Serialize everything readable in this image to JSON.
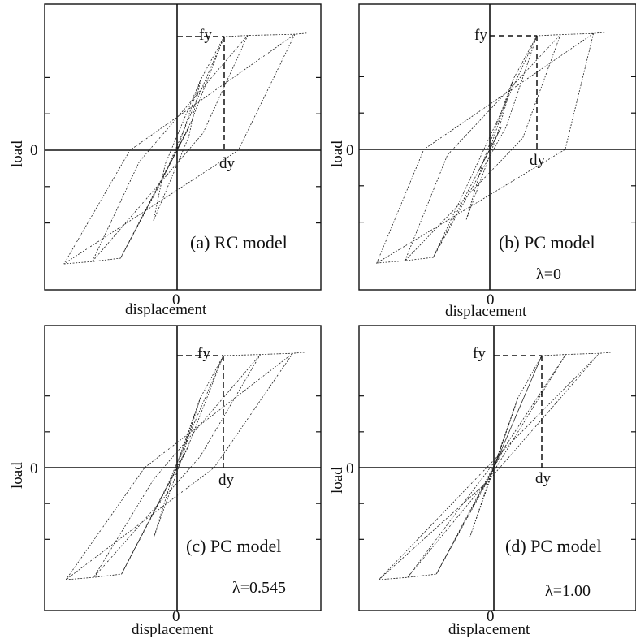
{
  "chart_data": [
    {
      "id": "a",
      "type": "line",
      "caption": "(a) RC model",
      "lambda_text": "",
      "xlabel": "displacement",
      "ylabel": "load",
      "x_tick": "0",
      "y_tick": "0",
      "fy_label": "fy",
      "dy_label": "dy",
      "yield_point": {
        "x": 1.0,
        "y": 1.0
      },
      "envelope": [
        [
          -2.4,
          -1.0
        ],
        [
          -1.8,
          -0.98
        ],
        [
          -1.2,
          -0.95
        ],
        [
          0,
          0
        ],
        [
          0.5,
          0.62
        ],
        [
          1.0,
          1.0
        ],
        [
          1.5,
          1.01
        ],
        [
          2.5,
          1.02
        ],
        [
          2.75,
          1.03
        ]
      ],
      "loops": [
        [
          [
            0.25,
            0.2
          ],
          [
            -0.25,
            -0.2
          ],
          [
            0.25,
            0.2
          ]
        ],
        [
          [
            0.5,
            0.62
          ],
          [
            0.25,
            0.12
          ],
          [
            -0.5,
            -0.62
          ],
          [
            -0.25,
            -0.12
          ],
          [
            0.5,
            0.62
          ]
        ],
        [
          [
            1.0,
            1.0
          ],
          [
            0.3,
            0.25
          ],
          [
            -1.2,
            -0.95
          ],
          [
            -0.3,
            -0.25
          ],
          [
            1.0,
            1.0
          ]
        ],
        [
          [
            1.5,
            1.01
          ],
          [
            0.55,
            0.15
          ],
          [
            -1.8,
            -0.98
          ],
          [
            -0.8,
            -0.1
          ],
          [
            1.5,
            1.01
          ]
        ],
        [
          [
            2.5,
            1.02
          ],
          [
            1.3,
            0.0
          ],
          [
            -2.4,
            -1.0
          ],
          [
            -1.0,
            0.0
          ],
          [
            2.5,
            1.02
          ]
        ]
      ]
    },
    {
      "id": "b",
      "type": "line",
      "caption": "(b) PC model",
      "lambda_text": "λ=0",
      "xlabel": "displacement",
      "ylabel": "load",
      "x_tick": "0",
      "y_tick": "0",
      "fy_label": "fy",
      "dy_label": "dy",
      "yield_point": {
        "x": 1.0,
        "y": 1.0
      },
      "envelope": [
        [
          -2.4,
          -1.0
        ],
        [
          -1.8,
          -0.98
        ],
        [
          -1.2,
          -0.95
        ],
        [
          0,
          0
        ],
        [
          0.5,
          0.62
        ],
        [
          1.0,
          1.0
        ],
        [
          1.5,
          1.01
        ],
        [
          2.2,
          1.02
        ],
        [
          2.45,
          1.03
        ]
      ],
      "loops": [
        [
          [
            0.25,
            0.2
          ],
          [
            -0.25,
            -0.2
          ],
          [
            0.25,
            0.2
          ]
        ],
        [
          [
            0.5,
            0.62
          ],
          [
            0.15,
            0.12
          ],
          [
            -0.5,
            -0.62
          ],
          [
            -0.15,
            -0.12
          ],
          [
            0.5,
            0.62
          ]
        ],
        [
          [
            1.0,
            1.0
          ],
          [
            0.35,
            0.2
          ],
          [
            -1.2,
            -0.95
          ],
          [
            -0.35,
            -0.2
          ],
          [
            1.0,
            1.0
          ]
        ],
        [
          [
            1.5,
            1.01
          ],
          [
            0.7,
            0.1
          ],
          [
            -1.8,
            -0.98
          ],
          [
            -0.9,
            -0.05
          ],
          [
            1.5,
            1.01
          ]
        ],
        [
          [
            2.2,
            1.02
          ],
          [
            1.6,
            0.0
          ],
          [
            -2.4,
            -1.0
          ],
          [
            -1.4,
            0.0
          ],
          [
            2.2,
            1.02
          ]
        ]
      ]
    },
    {
      "id": "c",
      "type": "line",
      "caption": "(c) PC model",
      "lambda_text": "λ=0.545",
      "xlabel": "displacement",
      "ylabel": "load",
      "x_tick": "0",
      "y_tick": "0",
      "fy_label": "fy",
      "dy_label": "dy",
      "yield_point": {
        "x": 1.0,
        "y": 1.0
      },
      "envelope": [
        [
          -2.4,
          -1.0
        ],
        [
          -1.8,
          -0.98
        ],
        [
          -1.2,
          -0.95
        ],
        [
          0,
          0
        ],
        [
          0.5,
          0.62
        ],
        [
          1.0,
          1.0
        ],
        [
          1.8,
          1.01
        ],
        [
          2.5,
          1.02
        ],
        [
          2.75,
          1.03
        ]
      ],
      "loops": [
        [
          [
            0.25,
            0.2
          ],
          [
            -0.25,
            -0.2
          ],
          [
            0.25,
            0.2
          ]
        ],
        [
          [
            0.5,
            0.62
          ],
          [
            0.1,
            0.08
          ],
          [
            -0.5,
            -0.62
          ],
          [
            -0.1,
            -0.08
          ],
          [
            0.5,
            0.62
          ]
        ],
        [
          [
            1.0,
            1.0
          ],
          [
            0.2,
            0.15
          ],
          [
            -1.2,
            -0.95
          ],
          [
            -0.2,
            -0.15
          ],
          [
            1.0,
            1.0
          ]
        ],
        [
          [
            1.8,
            1.01
          ],
          [
            0.5,
            0.1
          ],
          [
            -1.8,
            -0.98
          ],
          [
            -0.5,
            -0.1
          ],
          [
            1.8,
            1.01
          ]
        ],
        [
          [
            2.5,
            1.02
          ],
          [
            0.8,
            0.0
          ],
          [
            -2.4,
            -1.0
          ],
          [
            -0.7,
            0.0
          ],
          [
            2.5,
            1.02
          ]
        ]
      ]
    },
    {
      "id": "d",
      "type": "line",
      "caption": "(d) PC model",
      "lambda_text": "λ=1.00",
      "xlabel": "displacement",
      "ylabel": "load",
      "x_tick": "0",
      "y_tick": "0",
      "fy_label": "fy",
      "dy_label": "dy",
      "yield_point": {
        "x": 1.0,
        "y": 1.0
      },
      "envelope": [
        [
          -2.4,
          -1.0
        ],
        [
          -1.8,
          -0.98
        ],
        [
          -1.2,
          -0.95
        ],
        [
          0,
          0
        ],
        [
          0.5,
          0.62
        ],
        [
          1.0,
          1.0
        ],
        [
          1.5,
          1.01
        ],
        [
          2.2,
          1.02
        ],
        [
          2.45,
          1.03
        ]
      ],
      "loops": [
        [
          [
            0.25,
            0.2
          ],
          [
            -0.25,
            -0.2
          ],
          [
            0.25,
            0.2
          ]
        ],
        [
          [
            0.5,
            0.62
          ],
          [
            0.05,
            0.05
          ],
          [
            -0.5,
            -0.62
          ],
          [
            -0.05,
            -0.05
          ],
          [
            0.5,
            0.62
          ]
        ],
        [
          [
            1.0,
            1.0
          ],
          [
            0.08,
            0.08
          ],
          [
            -1.2,
            -0.95
          ],
          [
            -0.08,
            -0.08
          ],
          [
            1.0,
            1.0
          ]
        ],
        [
          [
            1.5,
            1.01
          ],
          [
            0.1,
            0.1
          ],
          [
            -1.8,
            -0.98
          ],
          [
            -0.1,
            -0.1
          ],
          [
            1.5,
            1.01
          ]
        ],
        [
          [
            2.2,
            1.02
          ],
          [
            0.12,
            0.12
          ],
          [
            -2.4,
            -1.0
          ],
          [
            -0.12,
            -0.12
          ],
          [
            2.2,
            1.02
          ]
        ]
      ]
    }
  ]
}
